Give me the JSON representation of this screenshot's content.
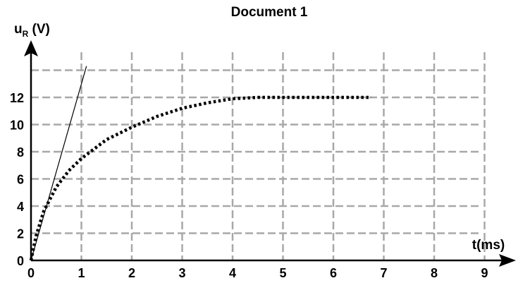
{
  "chart_data": {
    "type": "line",
    "title": "Document 1",
    "ylabel": {
      "base": "u",
      "sub": "R",
      "unit": " (V)"
    },
    "xlabel": "t(ms)",
    "xlim": [
      0,
      9
    ],
    "ylim": [
      0,
      12
    ],
    "x_ticks": [
      0,
      1,
      2,
      3,
      4,
      5,
      6,
      7,
      8,
      9
    ],
    "y_ticks": [
      0,
      2,
      4,
      6,
      8,
      10,
      12
    ],
    "grid": true,
    "series": [
      {
        "style": "dotted",
        "color": "#000000",
        "x": [
          0,
          0.1,
          0.25,
          0.5,
          0.75,
          1,
          1.5,
          2,
          2.5,
          3,
          3.5,
          4,
          4.5,
          5,
          5.5,
          6,
          6.5,
          6.75
        ],
        "y": [
          0,
          1.8,
          3.6,
          5.4,
          6.6,
          7.5,
          8.9,
          9.8,
          10.6,
          11.2,
          11.6,
          11.9,
          12.0,
          12.0,
          12.0,
          12.0,
          12.0,
          12.0
        ]
      },
      {
        "style": "solid-thin",
        "color": "#000000",
        "x": [
          0,
          1.1
        ],
        "y": [
          0,
          14.3
        ]
      }
    ]
  }
}
